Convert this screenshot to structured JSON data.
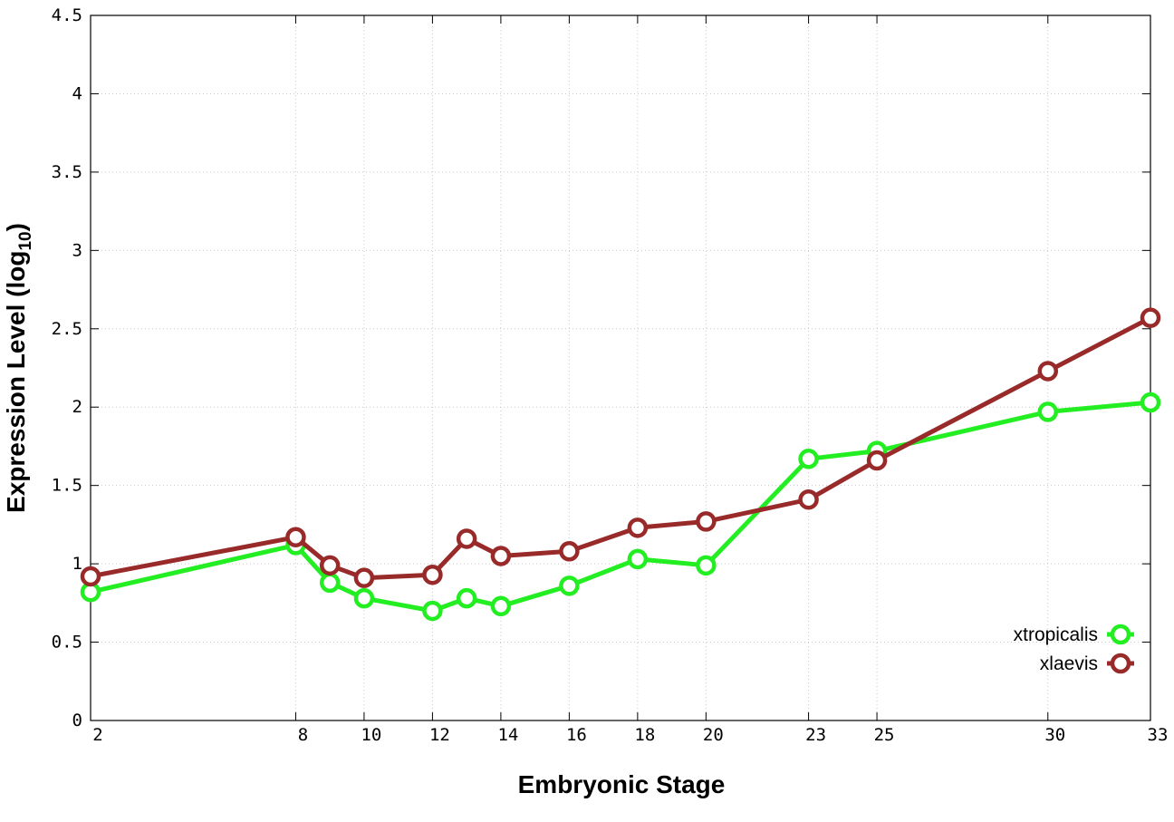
{
  "chart_data": {
    "type": "line",
    "title": "",
    "xlabel": "Embryonic Stage",
    "ylabel": "Expression Level (log",
    "ylabel_subscript": "10",
    "ylabel_suffix": ")",
    "x_ticks": [
      2,
      8,
      10,
      12,
      14,
      16,
      18,
      20,
      23,
      25,
      30,
      33
    ],
    "x_tick_labels": [
      "2",
      "8",
      "10",
      "12",
      "14",
      "16",
      "18",
      "20",
      "23",
      "25",
      "30",
      "33"
    ],
    "xlim": [
      2,
      33
    ],
    "y_ticks": [
      0,
      0.5,
      1,
      1.5,
      2,
      2.5,
      3,
      3.5,
      4,
      4.5
    ],
    "y_tick_labels": [
      "0",
      "0.5",
      "1",
      "1.5",
      "2",
      "2.5",
      "3",
      "3.5",
      "4",
      "4.5"
    ],
    "ylim": [
      0,
      4.5
    ],
    "grid": true,
    "legend_position": "bottom-right",
    "series": [
      {
        "name": "xtropicalis",
        "color": "#22ee22",
        "x": [
          2,
          8,
          9,
          10,
          12,
          13,
          14,
          16,
          18,
          20,
          23,
          25,
          30,
          33
        ],
        "y": [
          0.82,
          1.12,
          0.88,
          0.78,
          0.7,
          0.78,
          0.73,
          0.86,
          1.03,
          0.99,
          1.67,
          1.72,
          1.97,
          2.03
        ]
      },
      {
        "name": "xlaevis",
        "color": "#992a2a",
        "x": [
          2,
          8,
          9,
          10,
          12,
          13,
          14,
          16,
          18,
          20,
          23,
          25,
          30,
          33
        ],
        "y": [
          0.92,
          1.17,
          0.99,
          0.91,
          0.93,
          1.16,
          1.05,
          1.08,
          1.23,
          1.27,
          1.41,
          1.66,
          2.23,
          2.57
        ]
      }
    ]
  }
}
